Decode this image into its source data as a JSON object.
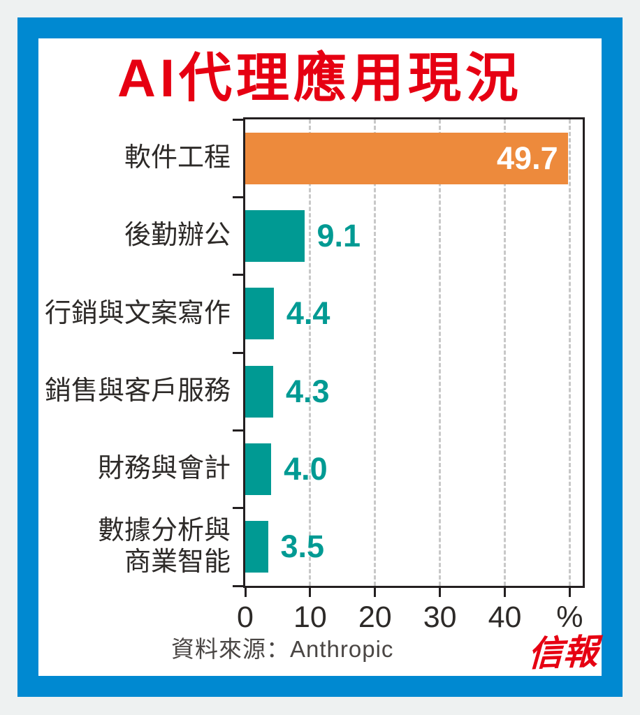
{
  "title": "AI代理應用現況",
  "source": "資料來源：Anthropic",
  "logo": "信報",
  "colors": {
    "page_background": "#eef1f1",
    "frame_blue": "#0089d1",
    "panel_white": "#ffffff",
    "title_red": "#e60012",
    "logo_red": "#e60012",
    "highlight_bar_orange": "#ed8a3c",
    "bar_teal": "#009a93",
    "axis_black": "#231f20",
    "gridline_gray": "#c8c8c8",
    "text_dark": "#2d2a28",
    "source_gray": "#4a4644"
  },
  "chart_data": {
    "type": "bar",
    "orientation": "horizontal",
    "title": "AI代理應用現況",
    "categories": [
      "軟件工程",
      "後勤辦公",
      "行銷與文案寫作",
      "銷售與客戶服務",
      "財務與會計",
      "數據分析與\n商業智能"
    ],
    "values": [
      49.7,
      9.1,
      4.4,
      4.3,
      4.0,
      3.5
    ],
    "value_labels": [
      "49.7",
      "9.1",
      "4.4",
      "4.3",
      "4.0",
      "3.5"
    ],
    "unit": "%",
    "xlabel": "",
    "ylabel": "",
    "xlim": [
      0,
      52
    ],
    "xticks": [
      {
        "value": 0,
        "label": "0"
      },
      {
        "value": 10,
        "label": "10"
      },
      {
        "value": 20,
        "label": "20"
      },
      {
        "value": 30,
        "label": "30"
      },
      {
        "value": 40,
        "label": "40"
      },
      {
        "value": 50,
        "label": "%"
      }
    ],
    "grid": "vertical dashed gridlines at each tick",
    "legend": "none",
    "highlight_index": 0,
    "value_label_style": {
      "highlight": "white, bold, inside bar right end",
      "normal": "teal, bold, outside bar"
    }
  }
}
